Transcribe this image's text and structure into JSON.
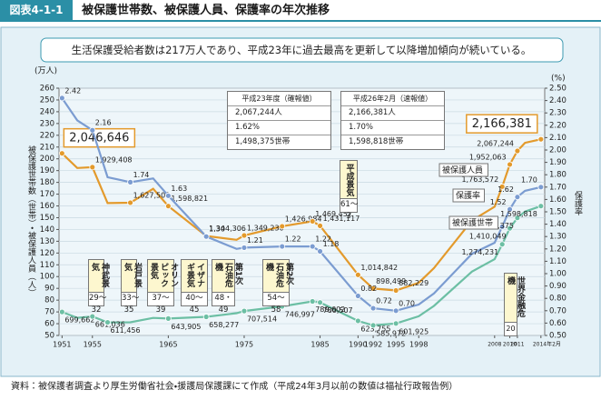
{
  "header": {
    "figure_no": "図表4-1-1",
    "title": "被保護世帯数、被保護人員、保護率の年次推移"
  },
  "subtitle": "生活保護受給者数は217万人であり、平成23年に過去最高を更新して以降増加傾向が続いている。",
  "source": "資料：被保護者調査より厚生労働省社会・援護局保護課にて作成（平成24年3月以前の数値は福祉行政報告例）",
  "summary_tables": [
    {
      "title": "平成23年度（確報値）",
      "rows": [
        "2,067,244人",
        "1.62%",
        "1,498,375世帯"
      ]
    },
    {
      "title": "平成26年2月（速報値）",
      "rows": [
        "2,166,381人",
        "1.70%",
        "1,598,818世帯"
      ]
    }
  ],
  "chart_data": {
    "type": "line",
    "y_unit": "(万人)",
    "y2_unit": "(%)",
    "ylabel": "被保護世帯数（世帯）・被保護人員（人）",
    "y2label": "保護率",
    "grid": true,
    "x": [
      1951,
      1953,
      1955,
      1957,
      1960,
      1963,
      1965,
      1970,
      1974,
      1975,
      1980,
      1984,
      1985,
      1990,
      1992,
      1995,
      1998,
      2000,
      2005,
      2008,
      2009,
      2010,
      2011,
      2012,
      2014.1
    ],
    "xlim": [
      1950.6,
      2014.6
    ],
    "xticks": [
      1951,
      1955,
      1965,
      1975,
      1985,
      1990,
      1992,
      1995,
      1998,
      2008,
      2010,
      2011,
      {
        "value": 2014.1,
        "label": "2014年2月"
      }
    ],
    "ylim": [
      50,
      260
    ],
    "yticks": [
      50,
      60,
      70,
      80,
      90,
      100,
      110,
      120,
      130,
      140,
      150,
      160,
      170,
      180,
      190,
      200,
      210,
      220,
      230,
      240,
      250,
      260
    ],
    "y2lim": [
      0.5,
      2.5
    ],
    "y2ticks": [
      {
        "value": 0.5,
        "label": "0.50"
      },
      {
        "value": 0.6,
        "label": "0.60"
      },
      {
        "value": 0.7,
        "label": "0.70"
      },
      {
        "value": 0.8,
        "label": "0.80"
      },
      {
        "value": 0.9,
        "label": "0.90"
      },
      {
        "value": 1.0,
        "label": "1.00"
      },
      {
        "value": 1.1,
        "label": "1.10"
      },
      {
        "value": 1.2,
        "label": "1.20"
      },
      {
        "value": 1.3,
        "label": "1.30"
      },
      {
        "value": 1.4,
        "label": "1.40"
      },
      {
        "value": 1.5,
        "label": "1.50"
      },
      {
        "value": 1.6,
        "label": "1.60"
      },
      {
        "value": 1.7,
        "label": "1.70"
      },
      {
        "value": 1.8,
        "label": "1.80"
      },
      {
        "value": 1.9,
        "label": "1.90"
      },
      {
        "value": 2.0,
        "label": "2.00"
      },
      {
        "value": 2.1,
        "label": "2.10"
      },
      {
        "value": 2.2,
        "label": "2.20"
      },
      {
        "value": 2.3,
        "label": "2.30"
      },
      {
        "value": 2.4,
        "label": "2.40"
      },
      {
        "value": 2.5,
        "label": "2.50"
      }
    ],
    "series": [
      {
        "name": "被保護人員",
        "color": "#e39a2c",
        "values": [
          204.6646,
          192.2,
          192.9408,
          162.4,
          162.7509,
          174.5,
          159.8821,
          134.4306,
          131.2,
          134.923,
          142.6984,
          146.9457,
          143.1117,
          101.4842,
          89.8499,
          88.2229,
          94.7,
          107.2,
          147.6,
          159.3,
          176.3572,
          195.2063,
          206.7244,
          213.6,
          216.6381
        ],
        "value_labels": [
          "2,046,646",
          null,
          "1,929,408",
          null,
          "1,627,509",
          null,
          "1,598,821",
          "1,344,306",
          null,
          "1,349,230",
          "1,426,984",
          "1,469,457",
          "1,431,117",
          "1,014,842",
          "898,499",
          "882,229",
          null,
          null,
          null,
          null,
          "1,763,572",
          "1,952,063",
          "2,067,244",
          null,
          "2,166,381"
        ]
      },
      {
        "name": "保護率",
        "color": "#7b9cd1",
        "axis": "y2",
        "values": [
          2.42,
          2.24,
          2.16,
          1.78,
          1.74,
          1.77,
          1.63,
          1.3,
          1.2,
          1.21,
          1.22,
          1.22,
          1.18,
          0.82,
          0.72,
          0.7,
          0.75,
          0.84,
          1.16,
          1.25,
          1.38,
          1.52,
          1.62,
          1.67,
          1.7
        ],
        "value_labels": [
          "2.42",
          null,
          "2.16",
          null,
          "1.74",
          null,
          "1.63",
          "1.30",
          null,
          "1.21",
          "1.22",
          "1.22",
          "1.18",
          "0.82",
          "0.72",
          "0.70",
          null,
          null,
          null,
          null,
          "1.38",
          "1.52",
          "1.62",
          null,
          "1.70"
        ]
      },
      {
        "name": "被保護世帯",
        "color": "#6cbfa4",
        "values": [
          69.9662,
          65.0,
          66.1036,
          61.1456,
          61.2,
          64.9,
          64.3905,
          65.8277,
          68.9,
          70.7514,
          74.6997,
          78.9602,
          78.0507,
          62.3755,
          58.5972,
          60.1925,
          66.3,
          75.1,
          104.2,
          114.8,
          127.4231,
          141.0049,
          149.8375,
          155.2,
          159.8818
        ],
        "value_labels": [
          "699,662",
          null,
          "661,036",
          "611,456",
          null,
          null,
          "643,905",
          "658,277",
          null,
          "707,514",
          "746,997",
          "789,602",
          "780,507",
          "623,755",
          "585,972",
          "601,925",
          null,
          null,
          null,
          null,
          "1,274,231",
          "1,410,049",
          "1,498,375",
          null,
          "1,598,818"
        ]
      }
    ],
    "annotations": [
      {
        "text": "神武景気",
        "period": "29〜32"
      },
      {
        "text": "岩戸景気",
        "period": "33〜35"
      },
      {
        "text": "オリンピック景気",
        "period": "37〜39"
      },
      {
        "text": "イザナギ景気",
        "period": "40〜45"
      },
      {
        "text": "第1次石油危機",
        "period": "48・49"
      },
      {
        "text": "第2次石油危機",
        "period": "54〜58"
      },
      {
        "text": "平成景気",
        "period": "61〜3"
      },
      {
        "text": "世界金融危機",
        "period": "20"
      }
    ]
  }
}
